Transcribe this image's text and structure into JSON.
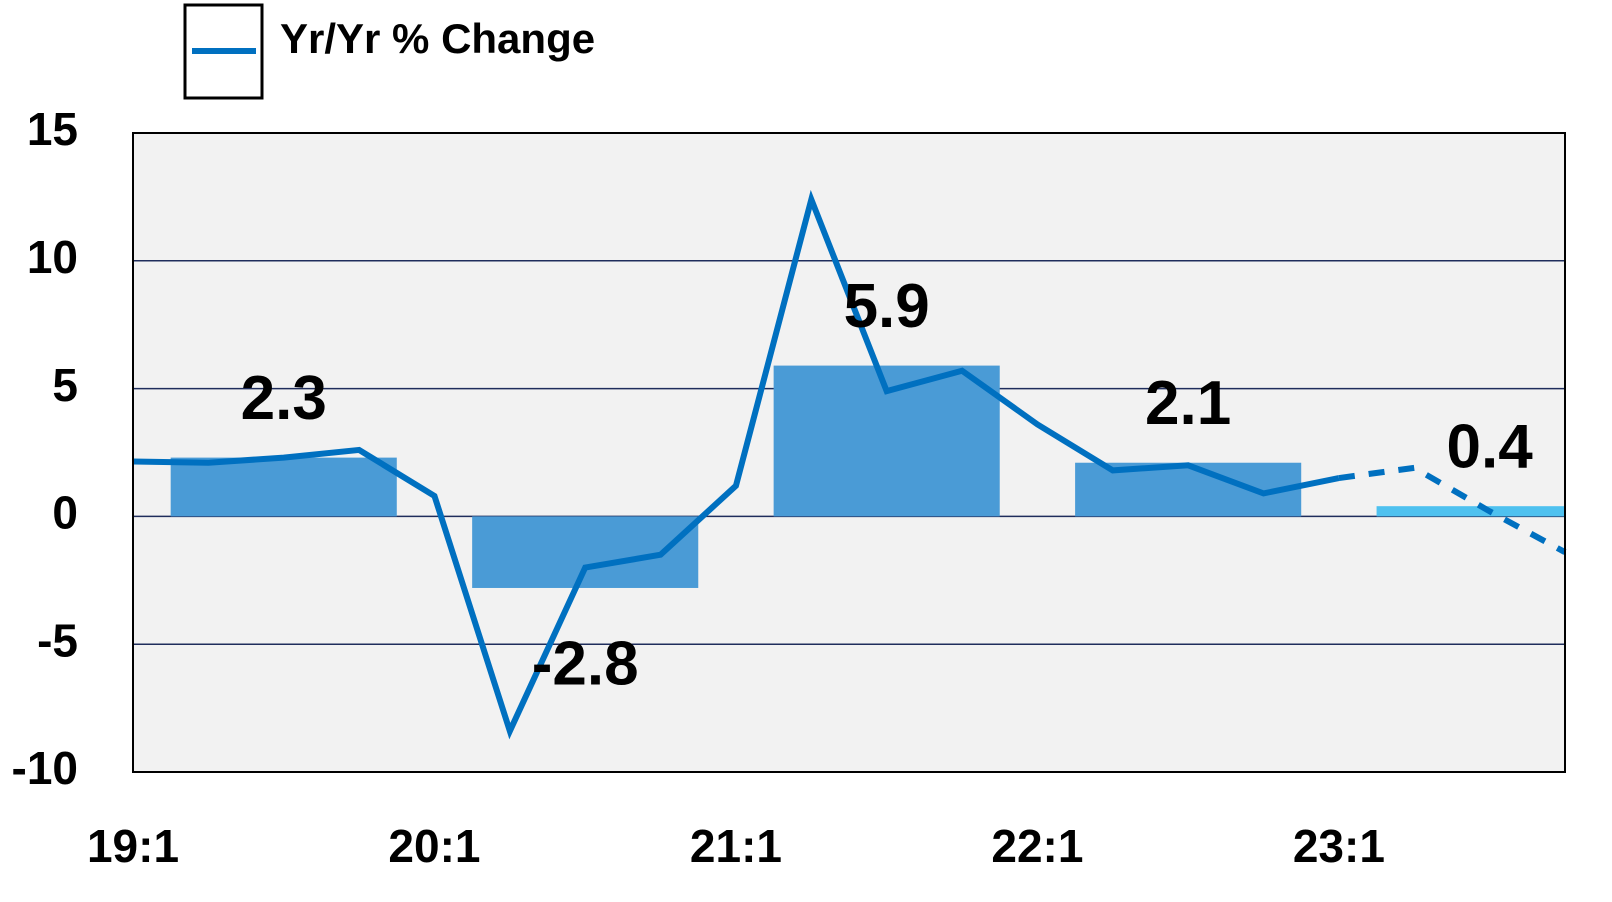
{
  "chart_data": {
    "type": "line",
    "categories": [
      "19:1",
      null,
      null,
      null,
      "20:1",
      null,
      null,
      null,
      "21:1",
      null,
      null,
      null,
      "22:1",
      null,
      null,
      null,
      "23:1",
      null,
      null,
      null
    ],
    "series": [
      {
        "name": "Yr/Yr % Change",
        "color": "#0070c0",
        "values": [
          2.15,
          2.1,
          2.3,
          2.6,
          0.8,
          -8.4,
          -2.0,
          -1.5,
          1.2,
          12.4,
          4.9,
          5.7,
          3.6,
          1.8,
          2.0,
          0.9,
          1.5,
          1.9,
          0.2,
          -1.4
        ],
        "dashed_from": 16
      }
    ],
    "bars": {
      "values": [
        2.3,
        -2.8,
        5.9,
        2.1,
        0.4
      ],
      "colors": [
        "#4a9bd6",
        "#4a9bd6",
        "#4a9bd6",
        "#4a9bd6",
        "#4fc1ef"
      ]
    },
    "ylim": [
      -10,
      15
    ],
    "yticks": [
      -10,
      -5,
      0,
      5,
      10,
      15
    ],
    "grid": true,
    "legend": "top-left"
  }
}
